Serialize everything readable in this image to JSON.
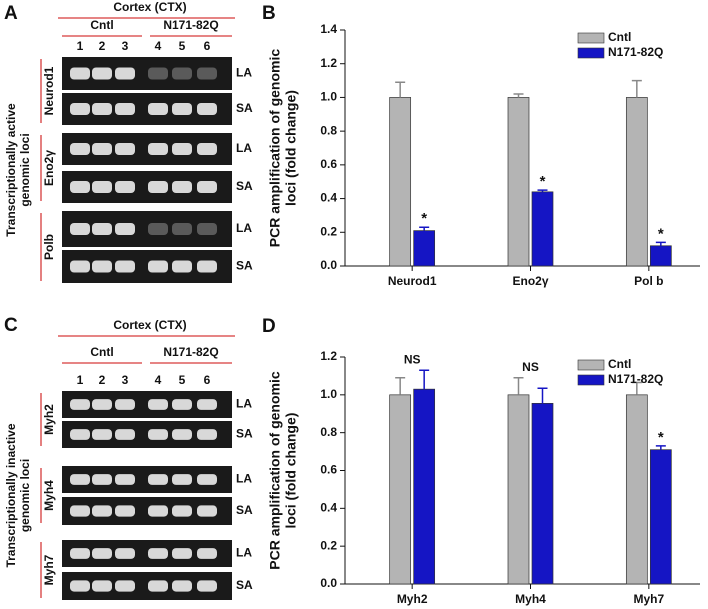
{
  "chart_data": [
    {
      "type": "bar",
      "panel_label": "B",
      "ylabel": [
        "PCR amplification of genomic",
        "loci (fold change)"
      ],
      "categories": [
        "Neurod1",
        "Eno2γ",
        "Pol b"
      ],
      "series": [
        {
          "name": "Cntl",
          "color": "#b4b4b4",
          "values": [
            1.0,
            1.0,
            1.0
          ],
          "errors": [
            0.09,
            0.02,
            0.1
          ]
        },
        {
          "name": "N171-82Q",
          "color": "#1515c4",
          "values": [
            0.21,
            0.44,
            0.12
          ],
          "errors": [
            0.02,
            0.01,
            0.02
          ]
        }
      ],
      "annotations": [
        "*",
        "*",
        "*"
      ],
      "ylim": [
        0,
        1.4
      ],
      "yticks": [
        {
          "value": 0,
          "label": "0.0"
        },
        0.2,
        0.4,
        0.6,
        0.8,
        {
          "value": 1,
          "label": "1.0"
        },
        1.2,
        1.4
      ],
      "legend": "upper right"
    },
    {
      "type": "bar",
      "panel_label": "D",
      "ylabel": [
        "PCR amplification of genomic",
        "loci (fold change)"
      ],
      "categories": [
        "Myh2",
        "Myh4",
        "Myh7"
      ],
      "series": [
        {
          "name": "Cntl",
          "color": "#b4b4b4",
          "values": [
            1.0,
            1.0,
            1.0
          ],
          "errors": [
            0.09,
            0.09,
            0.065
          ]
        },
        {
          "name": "N171-82Q",
          "color": "#1515c4",
          "values": [
            1.03,
            0.955,
            0.71
          ],
          "errors": [
            0.1,
            0.08,
            0.02
          ]
        }
      ],
      "annotations": [
        "NS",
        "NS",
        "*"
      ],
      "ylim": [
        0,
        1.2
      ],
      "yticks": [
        {
          "value": 0,
          "label": "0.0"
        },
        0.2,
        0.4,
        0.6,
        0.8,
        {
          "value": 1,
          "label": "1.0"
        },
        1.2
      ],
      "legend": "upper right"
    }
  ],
  "gels": [
    {
      "panel_label": "A",
      "header": "Cortex (CTX)",
      "groups": [
        "Cntl",
        "N171-82Q"
      ],
      "lanes": [
        "1",
        "2",
        "3",
        "4",
        "5",
        "6"
      ],
      "side_label": [
        "Transcriptionally active",
        "genomic loci"
      ],
      "genes": [
        {
          "name": "Neurod1",
          "bands": [
            "LA",
            "SA"
          ]
        },
        {
          "name": "Eno2γ",
          "bands": [
            "LA",
            "SA"
          ]
        },
        {
          "name": "Polb",
          "bands": [
            "LA",
            "SA"
          ]
        }
      ]
    },
    {
      "panel_label": "C",
      "header": "Cortex (CTX)",
      "groups": [
        "Cntl",
        "N171-82Q"
      ],
      "lanes": [
        "1",
        "2",
        "3",
        "4",
        "5",
        "6"
      ],
      "side_label": [
        "Transcriptionally inactive",
        "genomic loci"
      ],
      "genes": [
        {
          "name": "Myh2",
          "bands": [
            "LA",
            "SA"
          ]
        },
        {
          "name": "Myh4",
          "bands": [
            "LA",
            "SA"
          ]
        },
        {
          "name": "Myh7",
          "bands": [
            "LA",
            "SA"
          ]
        }
      ]
    }
  ]
}
